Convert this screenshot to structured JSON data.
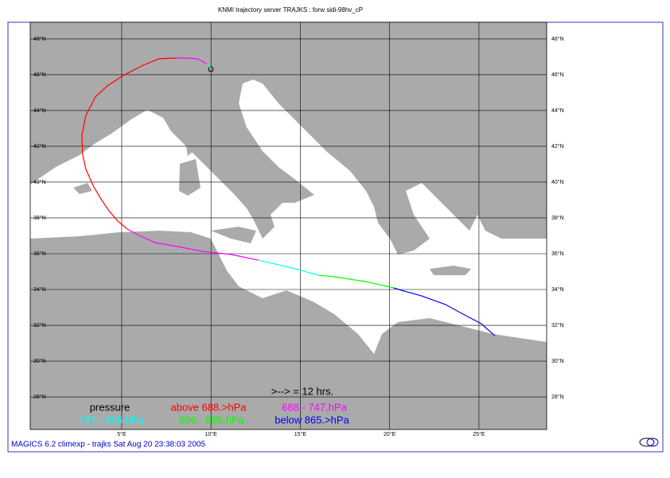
{
  "chart_data": {
    "type": "trajectory-map",
    "title": "KNMI trajectory server TRAJKS : forw sidi-98hv_cP",
    "footer": "MAGICS 6.2 climexp - trajks Sat Aug 20 23:38:03 2005",
    "xlim": [
      -0.12,
      28.79
    ],
    "ylim": [
      26.18,
      48.93
    ],
    "grid": true,
    "xticks": [
      {
        "value": 5,
        "label": "5°E"
      },
      {
        "value": 10,
        "label": "10°E"
      },
      {
        "value": 15,
        "label": "15°E"
      },
      {
        "value": 20,
        "label": "20°E"
      },
      {
        "value": 25,
        "label": "25°E"
      }
    ],
    "yticks": [
      {
        "value": 28,
        "label": "28°N"
      },
      {
        "value": 30,
        "label": "30°N"
      },
      {
        "value": 32,
        "label": "32°N"
      },
      {
        "value": 34,
        "label": "34°N"
      },
      {
        "value": 36,
        "label": "36°N"
      },
      {
        "value": 38,
        "label": "38°N"
      },
      {
        "value": 40,
        "label": "40°N"
      },
      {
        "value": 42,
        "label": "42°N"
      },
      {
        "value": 44,
        "label": "44°N"
      },
      {
        "value": 46,
        "label": "46°N"
      },
      {
        "value": 48,
        "label": "48°N"
      }
    ],
    "legend_title": "pressure",
    "arrow_note": ">--> = 12 hrs.",
    "legend": [
      {
        "label": "above 688.>hPa",
        "color": "#ff0000"
      },
      {
        "label": "688.- 747.hPa",
        "color": "#ff00ff"
      },
      {
        "label": "747.- 806.hPa",
        "color": "#00ffff"
      },
      {
        "label": "806.- 865.hPa",
        "color": "#00ff00"
      },
      {
        "label": "below 865.>hPa",
        "color": "#0000ff"
      }
    ],
    "segments": [
      {
        "color": "#00ffff",
        "lon": [
          9.99,
          9.77
        ],
        "lat": [
          46.36,
          46.62
        ]
      },
      {
        "color": "#ff00ff",
        "lon": [
          9.77,
          9.23,
          8.56,
          8.07
        ],
        "lat": [
          46.62,
          46.89,
          46.93,
          46.93
        ]
      },
      {
        "color": "#ff0000",
        "lon": [
          8.07,
          7.09,
          6.2,
          5.09,
          4.2,
          3.53,
          3.0,
          2.77,
          2.82,
          3.0,
          3.44,
          3.89,
          4.29,
          4.78,
          5.31
        ],
        "lat": [
          46.93,
          46.89,
          46.53,
          45.96,
          45.38,
          44.76,
          43.73,
          42.62,
          41.51,
          40.71,
          39.73,
          38.98,
          38.4,
          37.82,
          37.38
        ]
      },
      {
        "color": "#ff00ff",
        "lon": [
          5.31,
          5.98,
          6.87,
          8.34,
          9.54,
          11.1,
          12.66
        ],
        "lat": [
          37.38,
          37.02,
          36.62,
          36.36,
          36.13,
          35.96,
          35.64
        ]
      },
      {
        "color": "#00ffff",
        "lon": [
          12.66,
          13.77,
          14.89,
          16.0
        ],
        "lat": [
          35.64,
          35.38,
          35.11,
          34.8
        ]
      },
      {
        "color": "#00ff00",
        "lon": [
          16.0,
          16.89,
          18.67,
          20.23
        ],
        "lat": [
          34.8,
          34.71,
          34.44,
          34.09
        ]
      },
      {
        "color": "#0000ff",
        "lon": [
          20.23,
          20.81,
          21.79,
          23.13,
          24.02,
          25.13,
          25.89
        ],
        "lat": [
          34.09,
          33.91,
          33.64,
          33.16,
          32.67,
          32.09,
          31.42
        ]
      }
    ]
  }
}
